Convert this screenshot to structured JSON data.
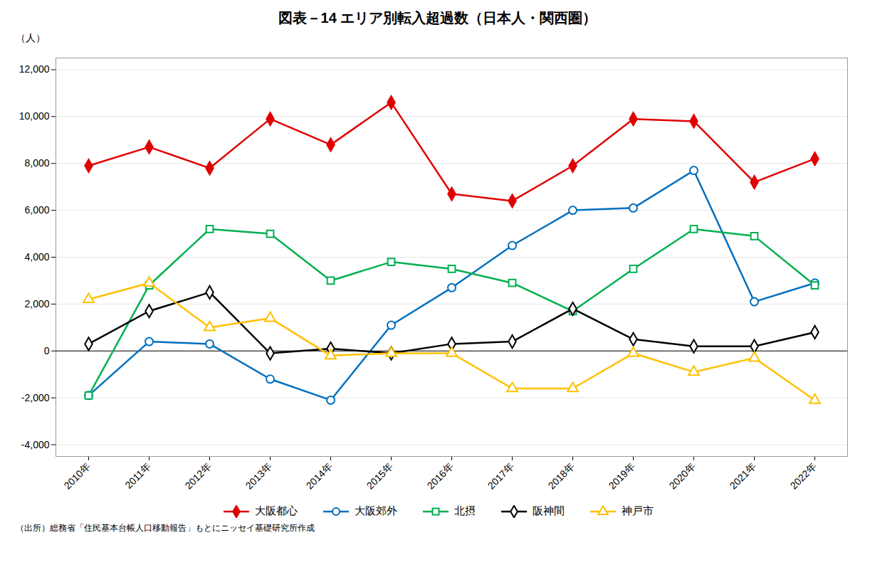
{
  "chart_data": {
    "type": "line",
    "title": "図表－14  エリア別転入超過数（日本人・関西圏）",
    "y_label": "（人）",
    "caption": "（出所）総務省「住民基本台帳人口移動報告」もとにニッセイ基礎研究所作成",
    "categories": [
      "2010年",
      "2011年",
      "2012年",
      "2013年",
      "2014年",
      "2015年",
      "2016年",
      "2017年",
      "2018年",
      "2019年",
      "2020年",
      "2021年",
      "2022年"
    ],
    "series": [
      {
        "name": "大阪都心",
        "color": "#e00000",
        "marker": "diamond",
        "values": [
          7900,
          8700,
          7800,
          9900,
          8800,
          10600,
          6700,
          6400,
          7900,
          9900,
          9800,
          7200,
          8200
        ]
      },
      {
        "name": "大阪郊外",
        "color": "#0070c0",
        "marker": "open_circle",
        "values": [
          -1900,
          400,
          300,
          -1200,
          -2100,
          1100,
          2700,
          4500,
          6000,
          6100,
          7700,
          2100,
          2900
        ]
      },
      {
        "name": "北摂",
        "color": "#00b050",
        "marker": "open_square",
        "values": [
          -1900,
          2800,
          5200,
          5000,
          3000,
          3800,
          3500,
          2900,
          1700,
          3500,
          5200,
          4900,
          2800
        ]
      },
      {
        "name": "阪神間",
        "color": "#000000",
        "marker": "open_diamond",
        "values": [
          300,
          1700,
          2500,
          -100,
          100,
          -100,
          300,
          400,
          1800,
          500,
          200,
          200,
          800
        ]
      },
      {
        "name": "神戸市",
        "color": "#ffc000",
        "marker": "open_triangle",
        "values": [
          2200,
          2900,
          1000,
          1400,
          -200,
          -100,
          -100,
          -1600,
          -1600,
          -100,
          -900,
          -300,
          -2100
        ]
      }
    ],
    "ylim": [
      -4500,
      12500
    ],
    "yticks": [
      {
        "value": -4000,
        "label": "-4,000"
      },
      {
        "value": -2000,
        "label": "-2,000"
      },
      0,
      {
        "value": 2000,
        "label": "2,000"
      },
      {
        "value": 4000,
        "label": "4,000"
      },
      {
        "value": 6000,
        "label": "6,000"
      },
      {
        "value": 8000,
        "label": "8,000"
      },
      {
        "value": 10000,
        "label": "10,000"
      },
      {
        "value": 12000,
        "label": "12,000"
      }
    ],
    "grid": true,
    "legend": "bottom"
  }
}
